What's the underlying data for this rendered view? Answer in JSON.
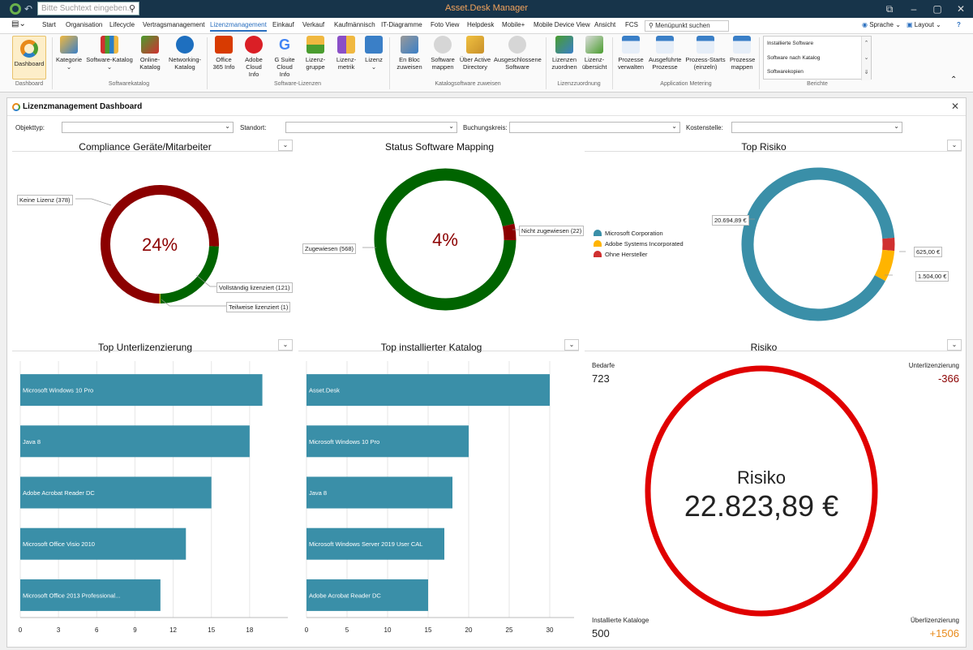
{
  "titlebar": {
    "app_title": "Asset.Desk Manager",
    "search_placeholder": "Bitte Suchtext eingeben...",
    "minimize": "–",
    "maximize": "▢",
    "close": "✕",
    "restore": "⧉"
  },
  "menubar": {
    "items": [
      "Start",
      "Organisation",
      "Lifecycle",
      "Vertragsmanagement",
      "Lizenzmanagement",
      "Einkauf",
      "Verkauf",
      "Kaufmännisch",
      "IT-Diagramme",
      "Foto View",
      "Helpdesk",
      "Mobile+",
      "Mobile Device View",
      "Ansicht",
      "FCS"
    ],
    "active_index": 4,
    "menu_search_placeholder": "Menüpunkt suchen",
    "sprache": "Sprache ⌄",
    "layout": "Layout ⌄",
    "help": "?"
  },
  "ribbon": {
    "dashboard": "Dashboard",
    "kategorie": "Kategorie",
    "software_katalog": "Software-Katalog",
    "online_katalog": "Online-Katalog",
    "networking_katalog": "Networking-Katalog",
    "office365": "Office 365 Info",
    "adobe": "Adobe Cloud Info",
    "gsuite": "G Suite Cloud Info",
    "lizenzgruppe": "Lizenz-gruppe",
    "lizenzmetrik": "Lizenz-metrik",
    "lizenz": "Lizenz",
    "en_bloc": "En Bloc zuweisen",
    "software_mappen": "Software mappen",
    "active_directory": "Über Active Directory",
    "ausgeschlossene": "Ausgeschlossene Software",
    "lizenzen_zuordnen": "Lizenzen zuordnen",
    "lizenz_uebersicht": "Lizenz-übersicht",
    "prozesse_verwalten": "Prozesse verwalten",
    "ausgefuehrte": "Ausgeführte Prozesse",
    "prozess_starts": "Prozess-Starts (einzeln)",
    "prozesse_mappen": "Prozesse mappen",
    "groups": {
      "dashboard": "Dashboard",
      "softwarekatalog": "Softwarekatalog",
      "software_lizenzen": "Software-Lizenzen",
      "katalogsoftware": "Katalogsoftware zuweisen",
      "lizenzzuordnung": "Lizenzzuordnung",
      "application_metering": "Application Metering",
      "berichte": "Berichte"
    },
    "reports": [
      "Installierte Software",
      "Software nach Katalog",
      "Softwarekopien"
    ]
  },
  "panel": {
    "title": "Lizenzmanagement Dashboard",
    "filters": {
      "objekttyp": "Objekttyp:",
      "standort": "Standort:",
      "buchungskreis": "Buchungskreis:",
      "kostenstelle": "Kostenstelle:"
    }
  },
  "colors": {
    "dark_red": "#8b0000",
    "green": "#006400",
    "teal": "#3a8fa8",
    "amber": "#ffb400",
    "red_risk": "#e00000",
    "orange_value": "#e88a1a",
    "neg_value": "#8b0000"
  },
  "chart_data": [
    {
      "type": "pie",
      "title": "Compliance Geräte/Mitarbeiter",
      "center_text": "24%",
      "labels": [
        "Keine Lizenz (378)",
        "Vollständig lizenziert (121)",
        "Teilweise lizenziert (1)"
      ],
      "values": [
        378,
        121,
        1
      ],
      "colors": [
        "#8b0000",
        "#006400",
        "#c8a000"
      ]
    },
    {
      "type": "pie",
      "title": "Status Software Mapping",
      "center_text": "4%",
      "labels": [
        "Zugewiesen (568)",
        "Nicht zugewiesen (22)"
      ],
      "values": [
        568,
        22
      ],
      "colors": [
        "#006400",
        "#8b0000"
      ]
    },
    {
      "type": "pie",
      "title": "Top Risiko",
      "series_labels": [
        "Microsoft Corporation",
        "Adobe Systems Incorporated",
        "Ohne Hersteller"
      ],
      "labels": [
        "20.694,89 €",
        "1.504,00 €",
        "625,00 €"
      ],
      "values": [
        20694.89,
        1504.0,
        625.0
      ],
      "colors": [
        "#3a8fa8",
        "#ffb400",
        "#d03030"
      ]
    },
    {
      "type": "bar",
      "title": "Top Unterlizenzierung",
      "categories": [
        "Microsoft Windows 10 Pro",
        "Java 8",
        "Adobe Acrobat Reader DC",
        "Microsoft Office Visio 2010",
        "Microsoft Office 2013 Professional..."
      ],
      "values": [
        19,
        18,
        15,
        13,
        11
      ],
      "xlim": [
        0,
        21
      ],
      "ticks": [
        "0",
        "3",
        "6",
        "9",
        "12",
        "15",
        "18"
      ],
      "tick_values": [
        0,
        3,
        6,
        9,
        12,
        15,
        18
      ]
    },
    {
      "type": "bar",
      "title": "Top installierter Katalog",
      "categories": [
        "Asset.Desk",
        "Microsoft Windows 10 Pro",
        "Java 8",
        "Microsoft Windows Server 2019 User CAL",
        "Adobe Acrobat Reader DC"
      ],
      "values": [
        30,
        20,
        18,
        17,
        15
      ],
      "xlim": [
        0,
        33
      ],
      "ticks": [
        "0",
        "5",
        "10",
        "15",
        "20",
        "25",
        "30"
      ],
      "tick_values": [
        0,
        5,
        10,
        15,
        20,
        25,
        30
      ]
    }
  ],
  "risk": {
    "title": "Risiko",
    "label": "Risiko",
    "value": "22.823,89 €",
    "bedarfe_label": "Bedarfe",
    "bedarfe_value": "723",
    "unter_label": "Unterlizenzierung",
    "unter_value": "-366",
    "installiert_label": "Installierte Kataloge",
    "installiert_value": "500",
    "ueber_label": "Überlizenzierung",
    "ueber_value": "+1506"
  }
}
